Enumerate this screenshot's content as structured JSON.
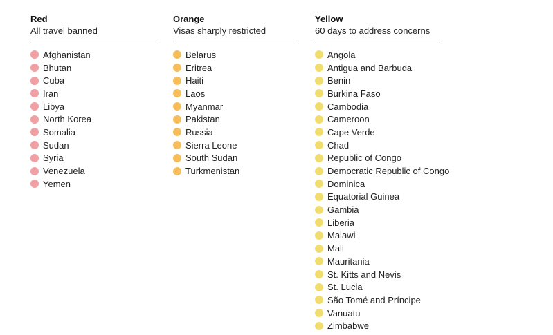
{
  "colors": {
    "red": "#f0a0a3",
    "orange": "#f6be5a",
    "yellow": "#f1dc6e"
  },
  "columns": [
    {
      "key": "red",
      "title": "Red",
      "subtitle": "All travel banned",
      "countries": [
        "Afghanistan",
        "Bhutan",
        "Cuba",
        "Iran",
        "Libya",
        "North Korea",
        "Somalia",
        "Sudan",
        "Syria",
        "Venezuela",
        "Yemen"
      ]
    },
    {
      "key": "orange",
      "title": "Orange",
      "subtitle": "Visas sharply restricted",
      "countries": [
        "Belarus",
        "Eritrea",
        "Haiti",
        "Laos",
        "Myanmar",
        "Pakistan",
        "Russia",
        "Sierra Leone",
        "South Sudan",
        "Turkmenistan"
      ]
    },
    {
      "key": "yellow",
      "title": "Yellow",
      "subtitle": "60 days to address concerns",
      "countries": [
        "Angola",
        "Antigua and Barbuda",
        "Benin",
        "Burkina Faso",
        "Cambodia",
        "Cameroon",
        "Cape Verde",
        "Chad",
        "Republic of Congo",
        "Democratic Republic of Congo",
        "Dominica",
        "Equatorial Guinea",
        "Gambia",
        "Liberia",
        "Malawi",
        "Mali",
        "Mauritania",
        "St. Kitts and Nevis",
        "St. Lucia",
        "São Tomé and Príncipe",
        "Vanuatu",
        "Zimbabwe"
      ]
    }
  ]
}
